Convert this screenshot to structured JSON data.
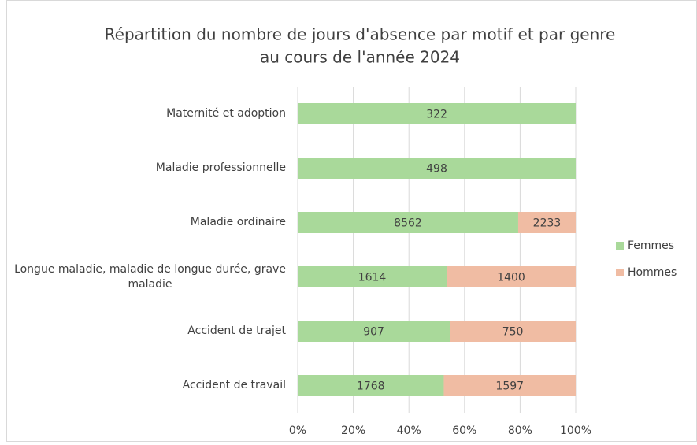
{
  "chart_data": {
    "type": "bar",
    "orientation": "horizontal",
    "stacking": "percent",
    "title": [
      "Répartition du nombre de jours d'absence par motif et par genre",
      "au cours de l'année 2024"
    ],
    "categories": [
      "Maternité et adoption",
      "Maladie professionnelle",
      "Maladie ordinaire",
      "Longue maladie, maladie de longue durée, grave maladie",
      "Accident de trajet",
      "Accident de travail"
    ],
    "series": [
      {
        "name": "Femmes",
        "color": "#a9d99a",
        "values": [
          322,
          498,
          8562,
          1614,
          907,
          1768
        ]
      },
      {
        "name": "Hommes",
        "color": "#f0bca3",
        "values": [
          0,
          0,
          2233,
          1400,
          750,
          1597
        ]
      }
    ],
    "xlim": [
      0,
      100
    ],
    "xticks": [
      {
        "value": 0,
        "label": "0%"
      },
      {
        "value": 20,
        "label": "20%"
      },
      {
        "value": 40,
        "label": "40%"
      },
      {
        "value": 60,
        "label": "60%"
      },
      {
        "value": 80,
        "label": "80%"
      },
      {
        "value": 100,
        "label": "100%"
      }
    ],
    "grid": true,
    "legend": "right"
  }
}
